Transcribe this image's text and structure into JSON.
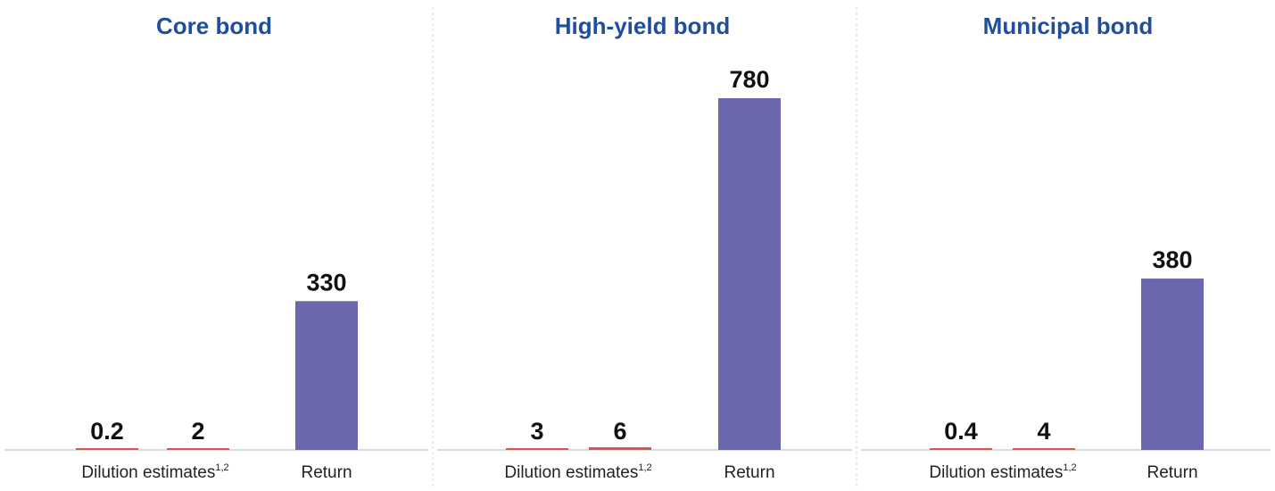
{
  "chart_data": [
    {
      "type": "bar",
      "title": "Core bond",
      "ylim": [
        0,
        800
      ],
      "bars": [
        {
          "value": 0.2,
          "label": "0.2",
          "color": "#d9534f"
        },
        {
          "value": 2,
          "label": "2",
          "color": "#d9534f"
        },
        {
          "value": 330,
          "label": "330",
          "color": "#6a67ae"
        }
      ],
      "categories": [
        {
          "text": "Dilution estimates",
          "sup": "1,2"
        },
        {
          "text": "Return",
          "sup": ""
        }
      ]
    },
    {
      "type": "bar",
      "title": "High-yield bond",
      "ylim": [
        0,
        800
      ],
      "bars": [
        {
          "value": 3,
          "label": "3",
          "color": "#d9534f"
        },
        {
          "value": 6,
          "label": "6",
          "color": "#d9534f"
        },
        {
          "value": 780,
          "label": "780",
          "color": "#6a67ae"
        }
      ],
      "categories": [
        {
          "text": "Dilution estimates",
          "sup": "1,2"
        },
        {
          "text": "Return",
          "sup": ""
        }
      ]
    },
    {
      "type": "bar",
      "title": "Municipal bond",
      "ylim": [
        0,
        800
      ],
      "bars": [
        {
          "value": 0.4,
          "label": "0.4",
          "color": "#d9534f"
        },
        {
          "value": 4,
          "label": "4",
          "color": "#d9534f"
        },
        {
          "value": 380,
          "label": "380",
          "color": "#6a67ae"
        }
      ],
      "categories": [
        {
          "text": "Dilution estimates",
          "sup": "1,2"
        },
        {
          "text": "Return",
          "sup": ""
        }
      ]
    }
  ],
  "colors": {
    "title": "#1f4e9c",
    "dilution": "#d9534f",
    "return": "#6a67ae",
    "baseline": "#cfcfcf",
    "divider": "#d6d6d6"
  }
}
